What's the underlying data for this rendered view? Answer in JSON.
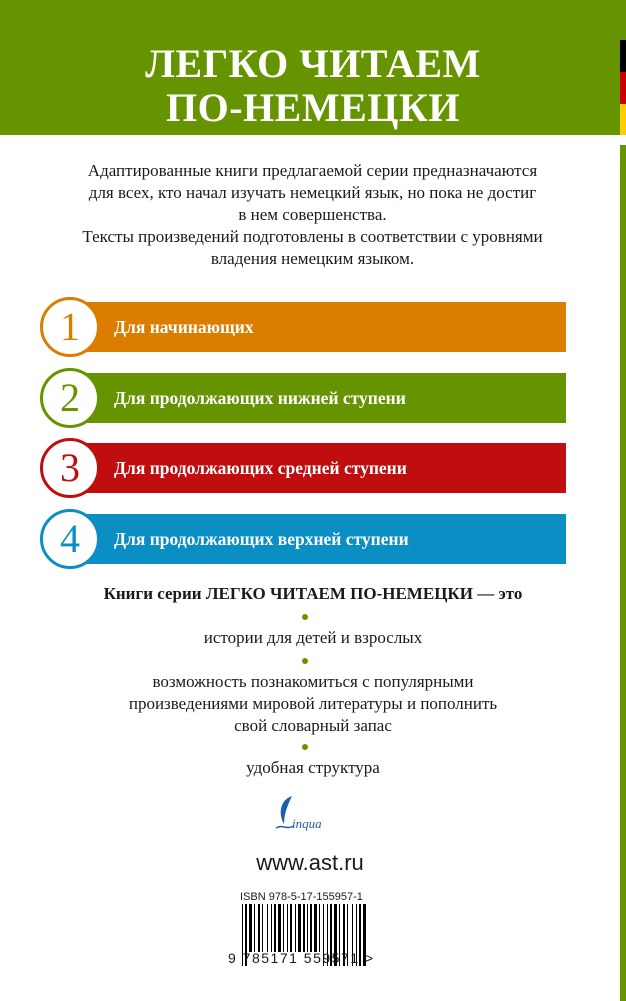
{
  "header": {
    "title_line1": "ЛЕГКО ЧИТАЕМ",
    "title_line2": "ПО-НЕМЕЦКИ"
  },
  "colors": {
    "green": "#669400",
    "orange": "#db7d00",
    "red": "#c00d0d",
    "blue": "#0b8ec4",
    "flag": [
      "#000000",
      "#cc0000",
      "#ffcc00"
    ]
  },
  "intro": [
    "Адаптированные книги предлагаемой серии предназначаются",
    "для всех, кто начал изучать немецкий язык, но пока не достиг",
    "в нем совершенства.",
    "Тексты произведений подготовлены в соответствии с уровнями",
    "владения немецким языком."
  ],
  "levels": [
    {
      "number": "1",
      "label": "Для начинающих",
      "color": "#db7d00"
    },
    {
      "number": "2",
      "label": "Для продолжающих нижней ступени",
      "color": "#669400"
    },
    {
      "number": "3",
      "label": "Для продолжающих средней ступени",
      "color": "#c00d0d"
    },
    {
      "number": "4",
      "label": "Для продолжающих верхней ступени",
      "color": "#0b8ec4"
    }
  ],
  "series": {
    "heading": "Книги серии ЛЕГКО ЧИТАЕМ ПО-НЕМЕЦКИ — это",
    "items": [
      "истории для детей и взрослых",
      "возможность познакомиться с популярными",
      "произведениями мировой литературы и пополнить",
      "свой словарный запас",
      "удобная структура"
    ]
  },
  "publisher": {
    "logo": "Lingua",
    "url": "www.ast.ru"
  },
  "isbn": {
    "label": "ISBN 978-5-17-155957-1",
    "ean": "9 785171 559571 >"
  }
}
